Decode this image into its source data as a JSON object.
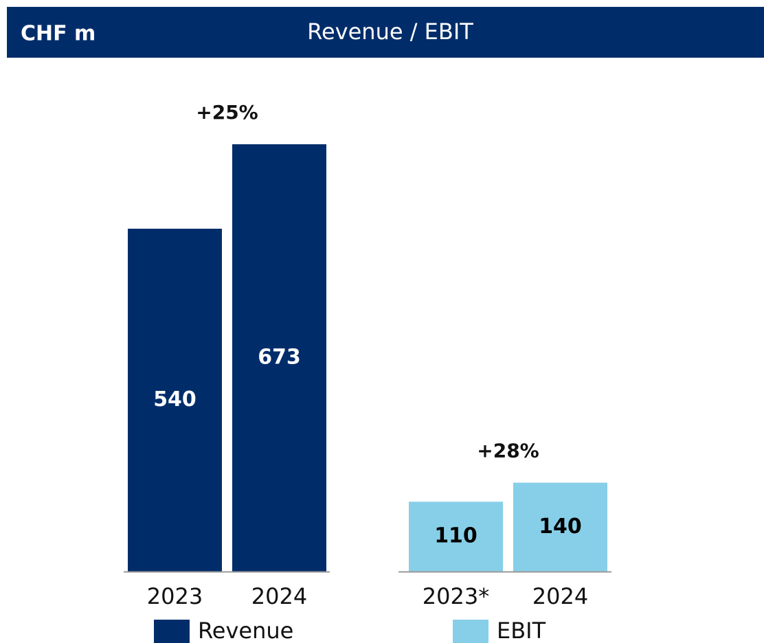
{
  "header": {
    "unit": "CHF m",
    "title": "Revenue / EBIT"
  },
  "chart_data": [
    {
      "type": "bar",
      "categories": [
        "2023",
        "2024"
      ],
      "annotation": "+25%",
      "series": [
        {
          "name": "Revenue",
          "color": "#002d6a",
          "label_color": "#ffffff",
          "values": [
            540,
            673
          ]
        }
      ]
    },
    {
      "type": "bar",
      "categories": [
        "2023*",
        "2024"
      ],
      "annotation": "+28%",
      "series": [
        {
          "name": "EBIT",
          "color": "#87cfe8",
          "label_color": "#000000",
          "values": [
            110,
            140
          ]
        }
      ]
    }
  ]
}
